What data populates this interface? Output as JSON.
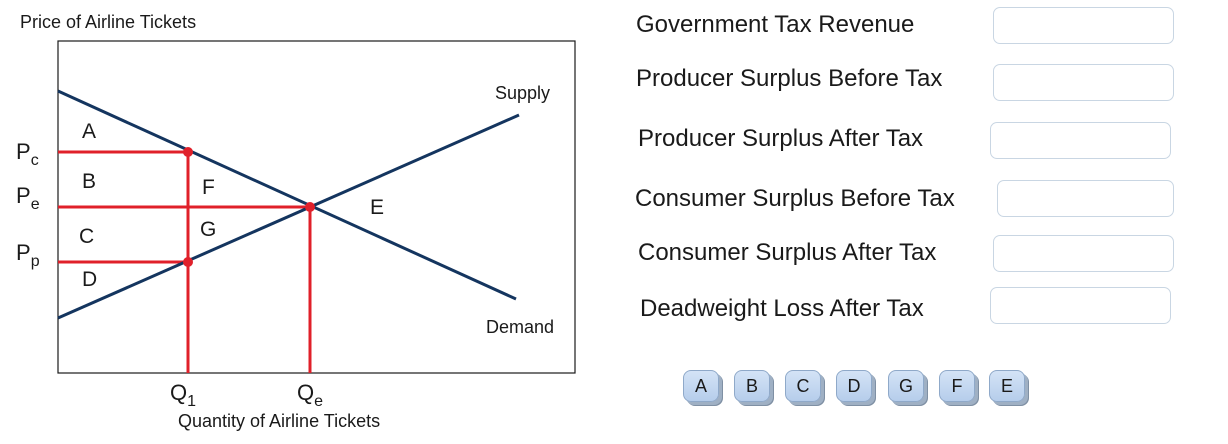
{
  "diagram": {
    "y_axis_title": "Price of Airline Tickets",
    "x_axis_title": "Quantity of Airline Tickets",
    "supply_label": "Supply",
    "demand_label": "Demand",
    "price_labels": {
      "pc_main": "P",
      "pc_sub": "c",
      "pe_main": "P",
      "pe_sub": "e",
      "pp_main": "P",
      "pp_sub": "p"
    },
    "quantity_labels": {
      "q1_main": "Q",
      "q1_sub": "1",
      "qe_main": "Q",
      "qe_sub": "e"
    },
    "areas": {
      "a": "A",
      "b": "B",
      "c": "C",
      "d": "D",
      "e": "E",
      "f": "F",
      "g": "G"
    },
    "colors": {
      "curves": "#14355f",
      "tax_lines": "#e0202a",
      "frame": "#1a1a1a"
    }
  },
  "answers": {
    "rows": [
      {
        "label": "Government Tax Revenue",
        "value": ""
      },
      {
        "label": "Producer Surplus Before Tax",
        "value": ""
      },
      {
        "label": "Producer Surplus After Tax",
        "value": ""
      },
      {
        "label": "Consumer Surplus Before Tax",
        "value": ""
      },
      {
        "label": "Consumer Surplus After Tax",
        "value": ""
      },
      {
        "label": "Deadweight Loss After Tax",
        "value": ""
      }
    ]
  },
  "chips": [
    "A",
    "B",
    "C",
    "D",
    "G",
    "F",
    "E"
  ]
}
